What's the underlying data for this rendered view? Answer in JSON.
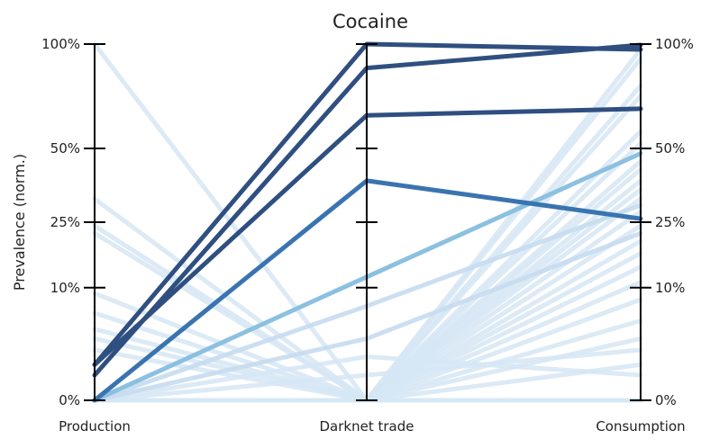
{
  "chart_data": {
    "type": "line",
    "title": "Cocaine",
    "ylabel": "Prevalence (norm.)",
    "categories": [
      "Production",
      "Darknet trade",
      "Consumption"
    ],
    "ylim": [
      0,
      100
    ],
    "y_scale": "sqrt",
    "y_ticks": [
      {
        "value": 0,
        "label": "0%"
      },
      {
        "value": 10,
        "label": "10%"
      },
      {
        "value": 25,
        "label": "25%"
      },
      {
        "value": 50,
        "label": "50%"
      },
      {
        "value": 100,
        "label": "100%"
      }
    ],
    "grid": false,
    "colors": {
      "dark": "#2f4f80",
      "medium": "#3a74b0",
      "light": "#8cc0e0",
      "pale": "#c7dcef",
      "faint": "#d6e6f4"
    },
    "series": [
      {
        "values": [
          1,
          100,
          97
        ],
        "tone": "dark"
      },
      {
        "values": [
          0.5,
          87,
          99.5
        ],
        "tone": "dark"
      },
      {
        "values": [
          1,
          64,
          67
        ],
        "tone": "dark"
      },
      {
        "values": [
          0,
          38,
          26
        ],
        "tone": "medium"
      },
      {
        "values": [
          0,
          12,
          48
        ],
        "tone": "light"
      },
      {
        "values": [
          0,
          7,
          30
        ],
        "tone": "pale"
      },
      {
        "values": [
          0,
          3,
          22
        ],
        "tone": "pale"
      },
      {
        "values": [
          100,
          0,
          0
        ],
        "tone": "faint"
      },
      {
        "values": [
          32,
          0,
          0
        ],
        "tone": "faint"
      },
      {
        "values": [
          24,
          0,
          0
        ],
        "tone": "faint"
      },
      {
        "values": [
          22,
          0,
          0
        ],
        "tone": "faint"
      },
      {
        "values": [
          9,
          0,
          0
        ],
        "tone": "faint"
      },
      {
        "values": [
          6,
          0,
          0
        ],
        "tone": "faint"
      },
      {
        "values": [
          4,
          0,
          0
        ],
        "tone": "faint"
      },
      {
        "values": [
          3,
          0,
          0
        ],
        "tone": "faint"
      },
      {
        "values": [
          2,
          0,
          0
        ],
        "tone": "faint"
      },
      {
        "values": [
          0,
          0,
          97
        ],
        "tone": "faint"
      },
      {
        "values": [
          0,
          0,
          92
        ],
        "tone": "faint"
      },
      {
        "values": [
          0,
          0,
          78
        ],
        "tone": "faint"
      },
      {
        "values": [
          0,
          0,
          73
        ],
        "tone": "faint"
      },
      {
        "values": [
          0,
          0,
          57
        ],
        "tone": "faint"
      },
      {
        "values": [
          0,
          0,
          52
        ],
        "tone": "faint"
      },
      {
        "values": [
          0,
          0,
          45
        ],
        "tone": "faint"
      },
      {
        "values": [
          0,
          0,
          42
        ],
        "tone": "faint"
      },
      {
        "values": [
          0,
          0,
          38
        ],
        "tone": "faint"
      },
      {
        "values": [
          0,
          0,
          35
        ],
        "tone": "faint"
      },
      {
        "values": [
          0,
          0,
          32
        ],
        "tone": "faint"
      },
      {
        "values": [
          0,
          0,
          28
        ],
        "tone": "faint"
      },
      {
        "values": [
          0,
          0,
          24
        ],
        "tone": "faint"
      },
      {
        "values": [
          0,
          0,
          20
        ],
        "tone": "faint"
      },
      {
        "values": [
          0,
          0,
          17
        ],
        "tone": "faint"
      },
      {
        "values": [
          0,
          0,
          14
        ],
        "tone": "faint"
      },
      {
        "values": [
          0,
          0,
          11
        ],
        "tone": "faint"
      },
      {
        "values": [
          0,
          0,
          8
        ],
        "tone": "faint"
      },
      {
        "values": [
          0,
          0,
          5
        ],
        "tone": "faint"
      },
      {
        "values": [
          0,
          0,
          3
        ],
        "tone": "faint"
      },
      {
        "values": [
          0,
          0,
          1
        ],
        "tone": "faint"
      },
      {
        "values": [
          0,
          1.5,
          0.5
        ],
        "tone": "faint"
      },
      {
        "values": [
          0,
          0.5,
          2
        ],
        "tone": "faint"
      }
    ]
  }
}
